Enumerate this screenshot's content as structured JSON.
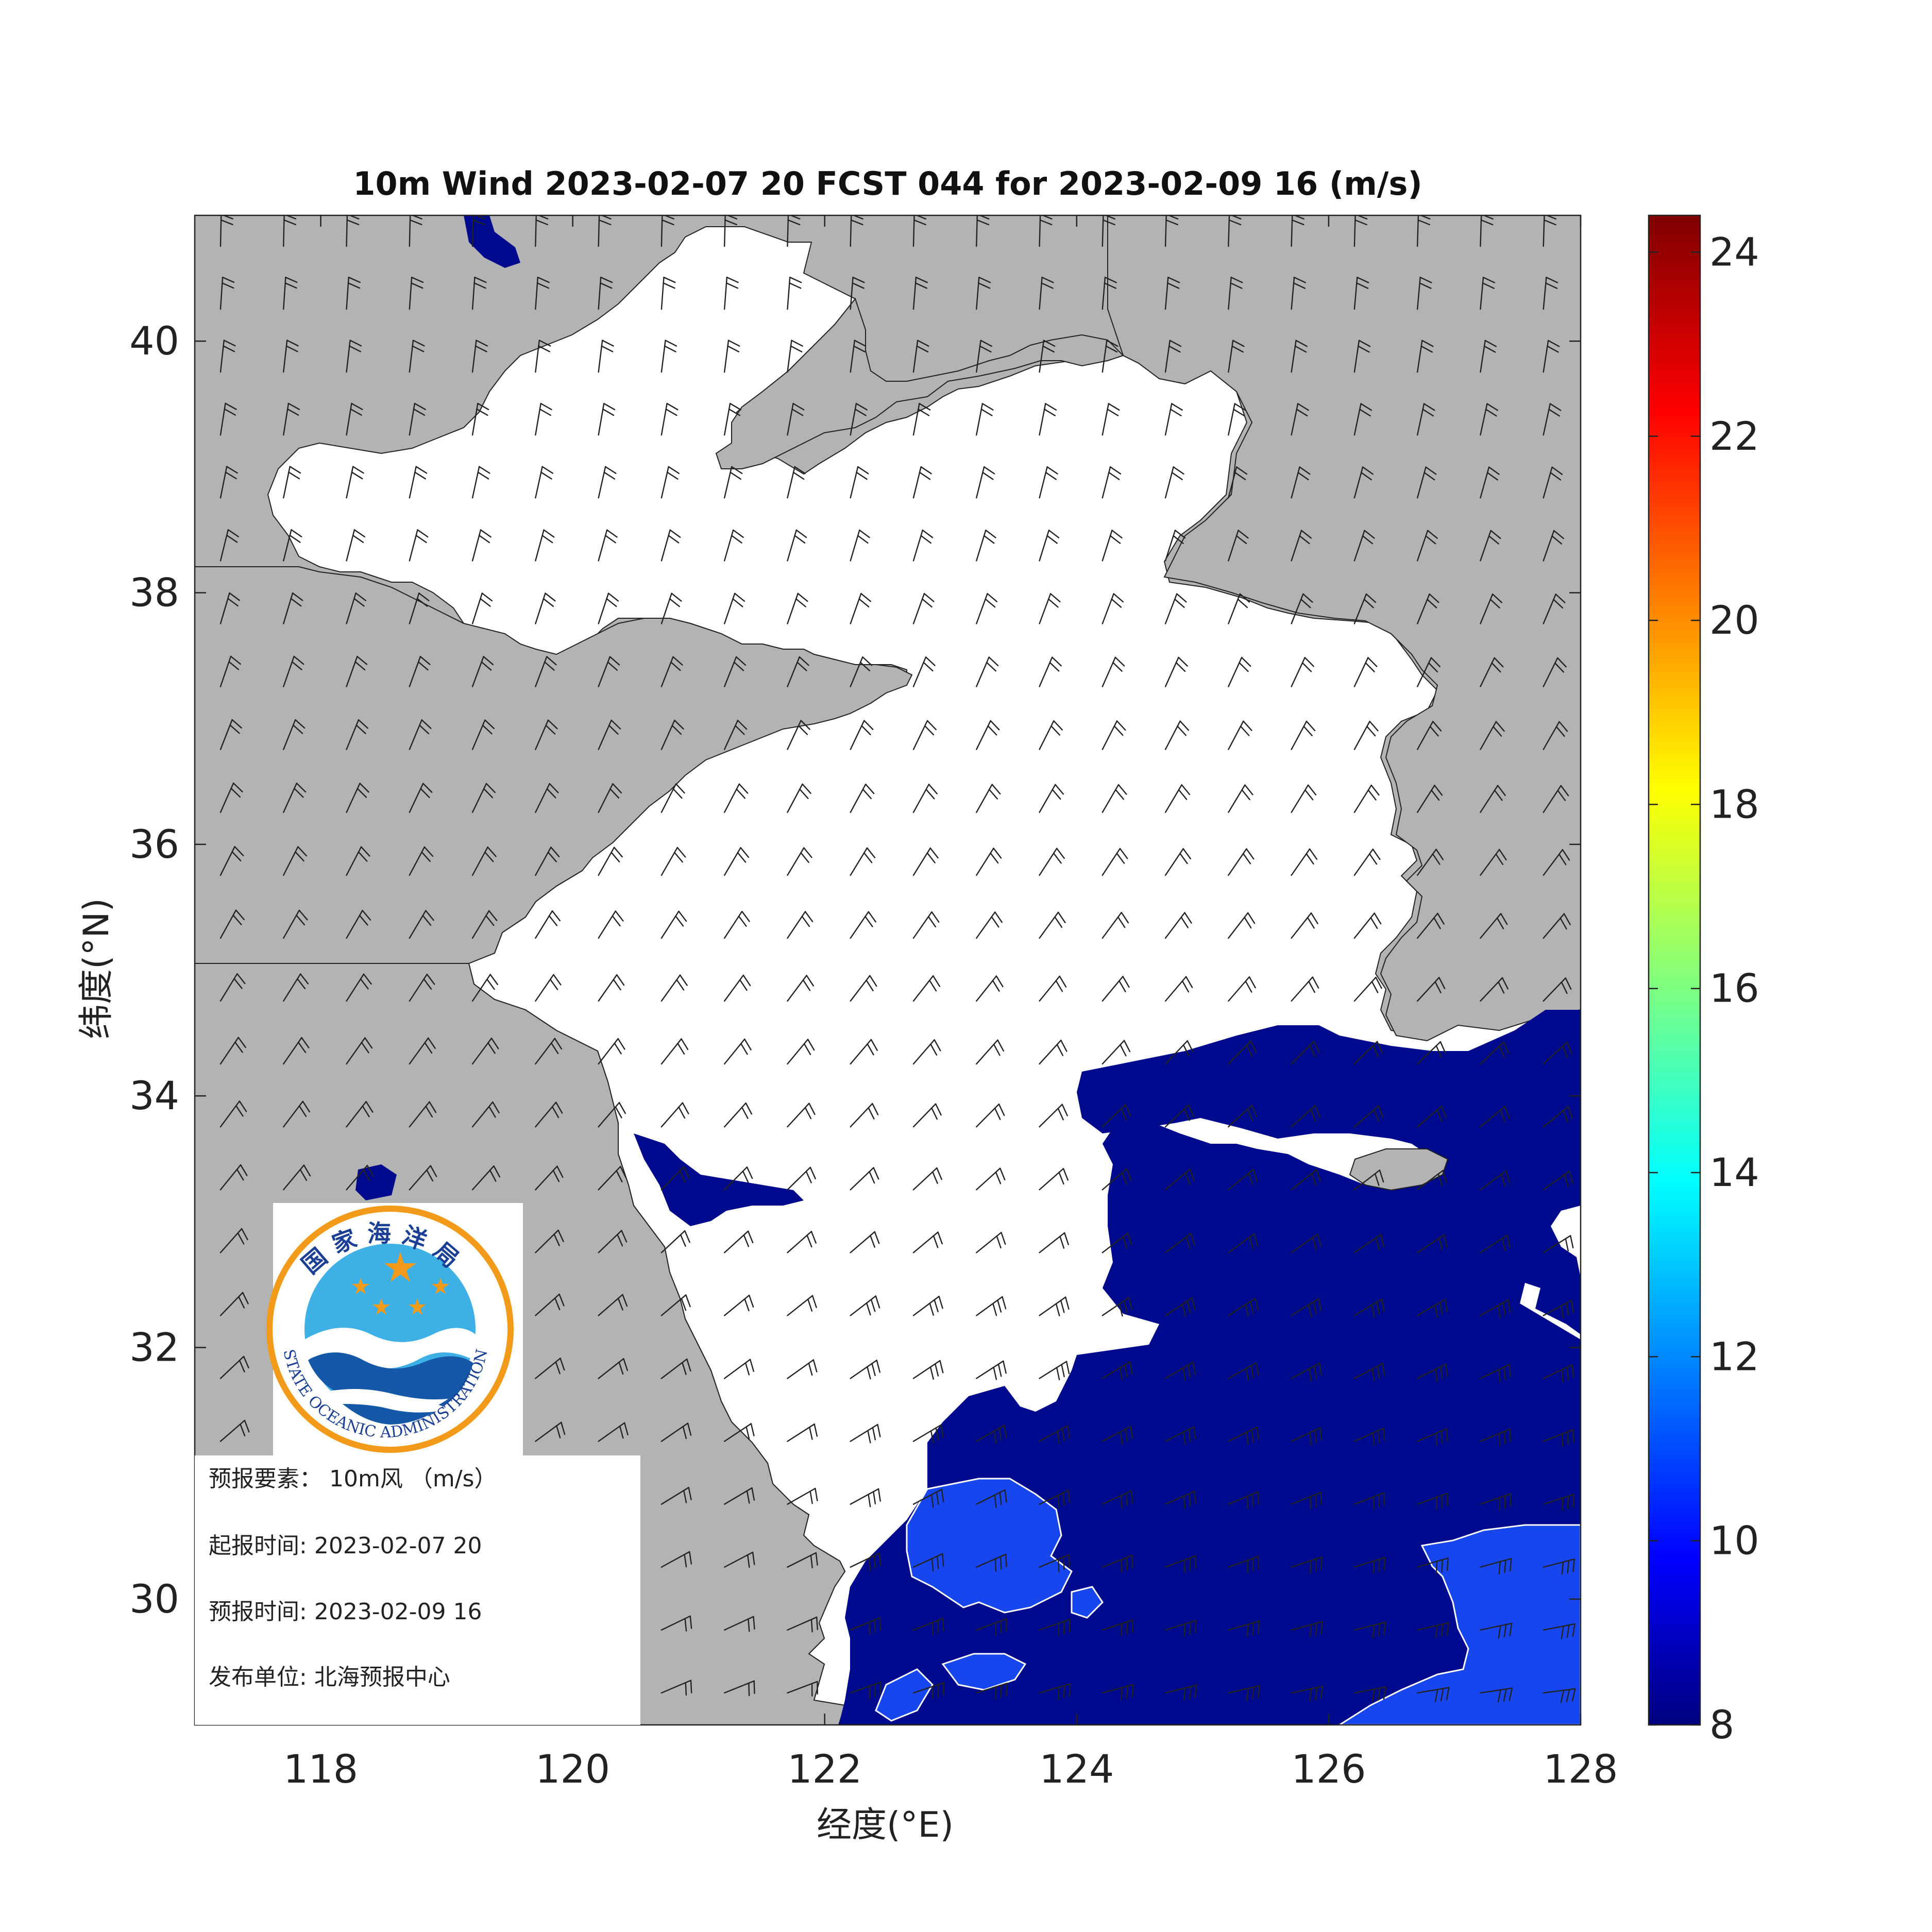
{
  "title": "10m Wind 2023-02-07 20 FCST 044 for 2023-02-09 16 (m/s)",
  "map": {
    "x_axis": {
      "label": "经度(°E)",
      "ticks": [
        "118",
        "120",
        "122",
        "124",
        "126",
        "128"
      ],
      "range": [
        117,
        128
      ]
    },
    "y_axis": {
      "label": "纬度(°N)",
      "ticks": [
        "30",
        "32",
        "34",
        "36",
        "38",
        "40"
      ],
      "range": [
        29,
        41
      ]
    },
    "land_color": "#b3b3b3",
    "sea_color": "#ffffff",
    "wind_symbol": "wind barbs",
    "shaded_regions": [
      {
        "name": "speed >= 8 m/s",
        "color": "#000a8c"
      },
      {
        "name": "speed >= 10 m/s",
        "color": "#1846ee"
      }
    ]
  },
  "colorbar": {
    "ticks": [
      "8",
      "10",
      "12",
      "14",
      "16",
      "18",
      "20",
      "22",
      "24"
    ],
    "range": [
      8,
      24.4
    ],
    "colormap": "jet"
  },
  "logo": {
    "top_text": "国家海洋局",
    "ring_text": "STATE OCEANIC ADMINISTRATION",
    "emblem": "soa-logo-icon"
  },
  "info": {
    "element_label": "预报要素：",
    "element_value": "10m风 （m/s）",
    "start_label": "起报时间:",
    "start_value": "2023-02-07 20",
    "valid_label": "预报时间:",
    "valid_value": "2023-02-09 16",
    "issuer_label": "发布单位:",
    "issuer_value": "北海预报中心"
  }
}
